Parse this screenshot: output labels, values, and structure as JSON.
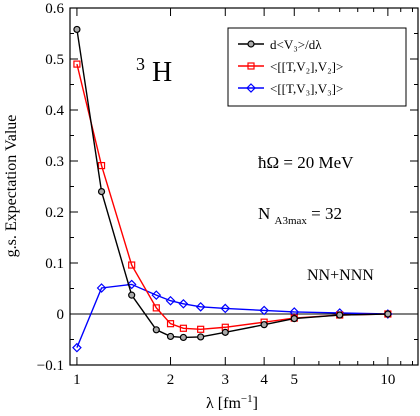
{
  "chart_data": {
    "type": "line",
    "xlabel": "λ [fm⁻¹]",
    "ylabel": "g.s. Expectation Value",
    "xscale": "log",
    "xlim": [
      0.95,
      12.5
    ],
    "ylim": [
      -0.1,
      0.6
    ],
    "xticks": [
      {
        "value": 1,
        "label": "1"
      },
      {
        "value": 2,
        "label": "2"
      },
      {
        "value": 3,
        "label": "3"
      },
      {
        "value": 4,
        "label": "4"
      },
      {
        "value": 5,
        "label": "5"
      },
      {
        "value": 10,
        "label": "10"
      }
    ],
    "yticks": [
      {
        "value": -0.1,
        "label": "−0.1"
      },
      {
        "value": 0,
        "label": "0"
      },
      {
        "value": 0.1,
        "label": "0.1"
      },
      {
        "value": 0.2,
        "label": "0.2"
      },
      {
        "value": 0.3,
        "label": "0.3"
      },
      {
        "value": 0.4,
        "label": "0.4"
      },
      {
        "value": 0.5,
        "label": "0.5"
      },
      {
        "value": 0.6,
        "label": "0.6"
      }
    ],
    "legend_position": "top-right",
    "grid": false,
    "series": [
      {
        "name": "d<V₃>/dλ",
        "color": "#000000",
        "marker": "circle",
        "x": [
          1.0,
          1.2,
          1.5,
          1.8,
          2.0,
          2.2,
          2.5,
          3.0,
          4.0,
          5.0,
          7.0,
          10.0
        ],
        "y": [
          0.558,
          0.24,
          0.037,
          -0.031,
          -0.044,
          -0.046,
          -0.045,
          -0.036,
          -0.021,
          -0.009,
          -0.002,
          0.0
        ]
      },
      {
        "name": "<[[T,V₂],V₂]>",
        "color": "#ff0000",
        "marker": "square",
        "x": [
          1.0,
          1.2,
          1.5,
          1.8,
          2.0,
          2.2,
          2.5,
          3.0,
          4.0,
          5.0,
          7.0,
          10.0
        ],
        "y": [
          0.49,
          0.291,
          0.096,
          0.012,
          -0.019,
          -0.028,
          -0.03,
          -0.026,
          -0.016,
          -0.008,
          -0.002,
          0.0
        ]
      },
      {
        "name": "<[[T,V₃],V₃]>",
        "color": "#0000ff",
        "marker": "diamond",
        "x": [
          1.0,
          1.2,
          1.5,
          1.8,
          2.0,
          2.2,
          2.5,
          3.0,
          4.0,
          5.0,
          7.0,
          10.0
        ],
        "y": [
          -0.066,
          0.051,
          0.058,
          0.037,
          0.026,
          0.02,
          0.014,
          0.011,
          0.007,
          0.004,
          0.002,
          0.0
        ]
      }
    ],
    "annotations": {
      "nucleus_mass": "3",
      "nucleus_symbol": "H",
      "hbar_omega": "ħΩ = 20 MeV",
      "na3max_base": "N",
      "na3max_sub": "A3max",
      "na3max_value": " = 32",
      "interaction": "NN+NNN"
    }
  }
}
